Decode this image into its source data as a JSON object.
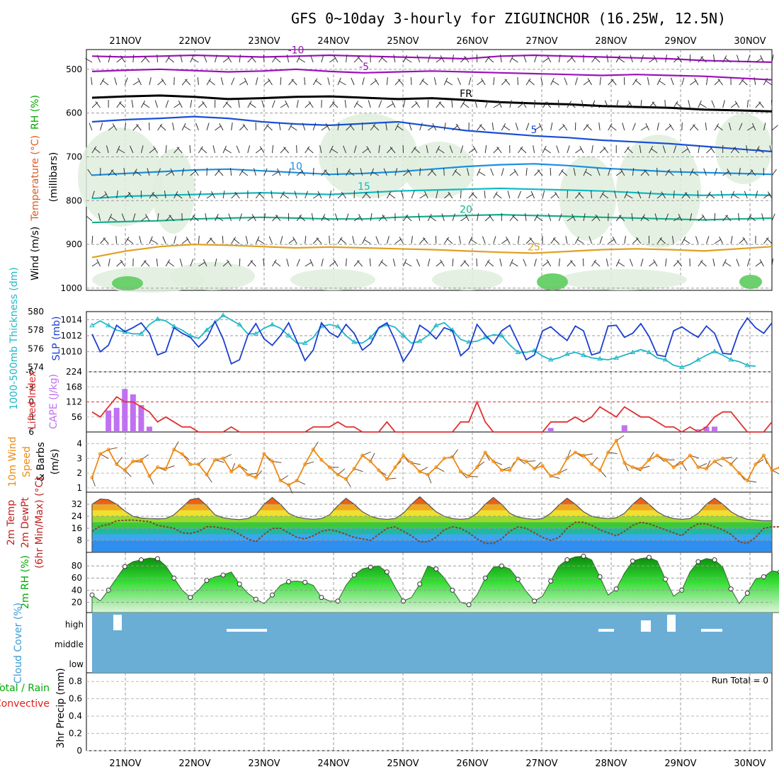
{
  "title": "GFS 0~10day 3-hourly for ZIGUINCHOR (16.25W, 12.5N)",
  "dates": [
    "21NOV",
    "22NOV",
    "23NOV",
    "24NOV",
    "25NOV",
    "26NOV",
    "27NOV",
    "28NOV",
    "29NOV",
    "30NOV"
  ],
  "colors": {
    "temp500": "#9b10b8",
    "freezing": "#000000",
    "temp5": "#1a4fd6",
    "temp10": "#1a8fe0",
    "temp15": "#11b8c0",
    "temp20": "#14b08a",
    "temp25": "#e0a020",
    "temp30": "#e06010",
    "slp": "#1a3fd0",
    "thickness": "#20b8c8",
    "lifted": "#e03030",
    "cape": "#c070f0",
    "wind10": "#f08a10",
    "rh2m": "#11c011",
    "cloud": "#6aaed6"
  },
  "chart_data": [
    {
      "panel": "upper-air",
      "type": "contour",
      "ylabel_parts": [
        "Wind (m/s)",
        "Temperature (°C)",
        "RH (%)"
      ],
      "ylabel2": "(millibars)",
      "y_ticks": [
        "500",
        "600",
        "700",
        "800",
        "900",
        "1000"
      ],
      "ylim": [
        455,
        1005
      ],
      "isotherms": [
        {
          "label": "-10",
          "pressure": [
            470,
            472,
            470,
            468,
            470,
            472,
            470,
            468,
            470,
            472,
            474,
            476,
            470,
            468,
            470,
            472,
            474,
            476,
            480,
            482,
            484
          ]
        },
        {
          "label": "-5",
          "pressure": [
            505,
            502,
            500,
            503,
            506,
            504,
            500,
            505,
            508,
            506,
            504,
            506,
            508,
            510,
            512,
            514,
            512,
            514,
            516,
            520,
            524
          ]
        },
        {
          "label": "FR",
          "pressure": [
            565,
            562,
            560,
            563,
            568,
            566,
            563,
            562,
            565,
            568,
            566,
            570,
            575,
            578,
            580,
            584,
            586,
            588,
            592,
            594,
            596
          ]
        },
        {
          "label": "5",
          "pressure": [
            620,
            615,
            612,
            608,
            612,
            620,
            625,
            628,
            624,
            620,
            630,
            640,
            646,
            652,
            656,
            662,
            666,
            670,
            676,
            682,
            688
          ]
        },
        {
          "label": "10",
          "pressure": [
            742,
            738,
            734,
            730,
            728,
            732,
            736,
            740,
            738,
            734,
            728,
            722,
            718,
            716,
            720,
            726,
            730,
            734,
            736,
            738,
            740
          ]
        },
        {
          "label": "15",
          "pressure": [
            795,
            790,
            788,
            786,
            784,
            782,
            784,
            786,
            782,
            778,
            776,
            774,
            772,
            774,
            776,
            778,
            782,
            786,
            788,
            786,
            788
          ]
        },
        {
          "label": "20",
          "pressure": [
            850,
            848,
            846,
            842,
            840,
            838,
            840,
            842,
            842,
            838,
            836,
            834,
            832,
            834,
            836,
            838,
            840,
            842,
            844,
            842,
            840
          ]
        },
        {
          "label": "25",
          "pressure": [
            930,
            915,
            905,
            900,
            902,
            905,
            908,
            906,
            908,
            910,
            912,
            915,
            918,
            920,
            916,
            912,
            910,
            912,
            915,
            910,
            905
          ]
        }
      ]
    },
    {
      "panel": "slp-thickness",
      "type": "line",
      "ylabel_left": "1000-500mb Thickness (dm)",
      "ylabel_right": "SLP (mb)",
      "left_ticks": [
        "580",
        "578",
        "576",
        "574"
      ],
      "right_ticks": [
        "1014",
        "1012",
        "1010"
      ],
      "series": [
        {
          "name": "SLP (mb)",
          "values": [
            1012.2,
            1010,
            1010.8,
            1013.3,
            1012.5,
            1013.0,
            1013.6,
            1012.3,
            1009.6,
            1010.0,
            1013.0,
            1012.3,
            1011.8,
            1010.6,
            1011.6,
            1013.8,
            1011.6,
            1008.5,
            1009.0,
            1012.0,
            1013.5,
            1011.6,
            1010.8,
            1012.0,
            1013.6,
            1011.3,
            1008.9,
            1010.2,
            1013.6,
            1012.4,
            1011.8,
            1013.4,
            1012.3,
            1010.2,
            1011.0,
            1013.0,
            1013.6,
            1011.4,
            1008.8,
            1010.3,
            1013.3,
            1012.6,
            1011.6,
            1013.0,
            1012.6,
            1009.5,
            1010.4,
            1013.4,
            1012.1,
            1011.0,
            1012.6,
            1013.3,
            1011.2,
            1009.0,
            1009.6,
            1012.6,
            1013.1,
            1012.2,
            1011.4,
            1013.2,
            1012.6,
            1009.6,
            1009.9,
            1013.2,
            1013.3,
            1011.8,
            1012.3,
            1013.5,
            1011.9,
            1009.6,
            1009.4,
            1012.6,
            1013.1,
            1012.4,
            1011.8,
            1013.2,
            1012.3,
            1009.8,
            1009.7,
            1012.6,
            1014.2,
            1013.0,
            1012.3,
            1013.6
          ]
        },
        {
          "name": "1000-500mb Thickness (dm)",
          "values": [
            578.5,
            579.0,
            578.5,
            578.0,
            577.8,
            577.6,
            577.6,
            578.6,
            579.2,
            579.0,
            578.4,
            578.0,
            577.4,
            577.1,
            578.0,
            578.8,
            579.6,
            579.1,
            578.6,
            577.6,
            577.6,
            578.2,
            578.6,
            578.2,
            577.4,
            576.6,
            576.6,
            577.2,
            578.4,
            578.6,
            578.4,
            577.4,
            576.7,
            576.6,
            577.2,
            578.2,
            578.6,
            578.3,
            577.4,
            576.6,
            576.8,
            577.4,
            578.5,
            578.8,
            578.0,
            577.0,
            576.7,
            576.8,
            577.2,
            577.5,
            577.4,
            576.4,
            575.6,
            575.6,
            575.8,
            575.2,
            574.8,
            575.0,
            575.4,
            575.6,
            575.3,
            575.0,
            574.9,
            574.8,
            575.0,
            575.3,
            575.6,
            575.9,
            575.6,
            575.0,
            574.8,
            574.2,
            574.0,
            574.3,
            574.8,
            575.3,
            575.7,
            575.3,
            574.8,
            574.6,
            574.2,
            574.1
          ]
        }
      ]
    },
    {
      "panel": "stability",
      "type": "bar+line",
      "ylabel_left": "Lifted Index",
      "ylabel_right": "CAPE (J/kg)",
      "left_ticks": [
        "-6",
        "-3",
        "0",
        "3",
        "6"
      ],
      "right_ticks": [
        "224",
        "168",
        "112",
        "56"
      ],
      "series": [
        {
          "name": "Lifted Index",
          "values": [
            2,
            3,
            1,
            -1,
            0,
            0,
            1,
            2,
            4,
            3,
            4,
            5,
            5,
            6,
            6,
            6,
            6,
            5,
            6,
            6,
            6,
            6,
            6,
            6,
            6,
            6,
            6,
            5,
            5,
            5,
            4,
            5,
            5,
            6,
            6,
            6,
            4,
            6,
            6,
            6,
            6,
            6,
            6,
            6,
            6,
            4,
            4,
            0,
            4,
            6,
            6,
            6,
            6,
            6,
            6,
            6,
            4,
            4,
            4,
            3,
            4,
            3,
            1,
            2,
            3,
            1,
            2,
            3,
            3,
            4,
            5,
            5,
            6,
            5,
            6,
            5,
            3,
            2,
            2,
            4,
            6,
            6,
            6,
            4
          ]
        },
        {
          "name": "CAPE (J/kg)",
          "values": [
            0,
            0,
            80,
            90,
            160,
            140,
            100,
            20,
            0,
            0,
            0,
            0,
            0,
            0,
            0,
            0,
            0,
            0,
            0,
            0,
            0,
            0,
            0,
            0,
            0,
            0,
            0,
            0,
            0,
            0,
            0,
            0,
            0,
            0,
            0,
            0,
            0,
            0,
            0,
            0,
            0,
            0,
            0,
            0,
            0,
            0,
            0,
            0,
            0,
            0,
            0,
            0,
            0,
            0,
            0,
            0,
            15,
            0,
            0,
            0,
            0,
            0,
            0,
            0,
            0,
            25,
            0,
            0,
            0,
            0,
            0,
            0,
            0,
            0,
            10,
            20,
            20,
            0,
            0,
            0,
            0,
            0,
            0,
            0
          ]
        }
      ]
    },
    {
      "panel": "wind10m",
      "type": "line",
      "ylabel": "10m Wind Speed & Barbs (m/s)",
      "ylabel_parts": [
        "10m Wind",
        "Speed",
        "& Barbs",
        "(m/s)"
      ],
      "y_ticks": [
        "4",
        "3",
        "2",
        "1"
      ],
      "series": [
        {
          "name": "10m Wind Speed",
          "values": [
            1.7,
            3.3,
            3.6,
            2.6,
            2.2,
            2.8,
            2.9,
            1.8,
            2.4,
            2.3,
            3.6,
            3.3,
            2.6,
            2.6,
            1.9,
            2.9,
            3.0,
            2.1,
            2.5,
            1.9,
            1.7,
            3.3,
            2.8,
            1.5,
            1.2,
            1.5,
            2.6,
            3.6,
            2.9,
            2.4,
            1.9,
            1.6,
            2.3,
            3.2,
            2.8,
            2.2,
            1.6,
            2.4,
            3.2,
            2.7,
            2.1,
            1.9,
            2.4,
            3.0,
            3.1,
            2.1,
            1.8,
            2.4,
            3.4,
            2.8,
            2.2,
            2.2,
            3.0,
            2.8,
            2.3,
            2.5,
            1.8,
            2.0,
            3.0,
            3.4,
            3.2,
            2.6,
            2.2,
            3.4,
            4.2,
            2.7,
            2.4,
            2.3,
            2.9,
            3.2,
            2.9,
            2.4,
            2.7,
            3.2,
            2.4,
            2.3,
            2.8,
            3.0,
            2.6,
            2.0,
            1.5,
            2.6,
            3.2,
            2.2,
            2.4
          ]
        }
      ]
    },
    {
      "panel": "temp2m",
      "type": "area+line",
      "ylabel_parts": [
        "2m Temp",
        "2m DewPt",
        "(6hr Min/Max) (°C)"
      ],
      "y_ticks": [
        "32",
        "24",
        "16",
        "8"
      ],
      "series": [
        {
          "name": "2m Temp",
          "values": [
            32,
            35.5,
            35,
            32,
            27.5,
            24,
            22.8,
            22.5,
            22.3,
            22.5,
            25,
            30,
            35,
            36,
            31,
            25,
            23,
            22.2,
            21.8,
            22.5,
            25,
            32,
            36.5,
            32,
            26,
            23.5,
            22.5,
            22,
            22.5,
            25,
            31,
            36,
            32,
            27,
            24,
            22.5,
            22,
            22.5,
            26,
            32,
            37,
            32,
            27,
            24,
            22.5,
            22,
            22.5,
            26,
            32,
            36.5,
            32,
            26,
            23.5,
            22.5,
            22,
            22.5,
            26,
            31.5,
            36,
            32,
            27,
            24,
            23,
            22.5,
            23,
            26,
            32,
            36.5,
            32,
            27,
            24,
            22.5,
            22,
            22.5,
            26,
            32,
            36,
            32,
            27,
            24,
            22,
            21.5,
            21,
            21
          ]
        },
        {
          "name": "2m DewPt",
          "values": [
            14,
            17.5,
            18.5,
            21,
            21.3,
            21.4,
            21,
            20.5,
            18,
            17,
            16,
            13,
            12.5,
            14,
            17,
            17,
            16,
            15,
            12,
            9,
            7,
            12,
            16,
            16,
            13,
            10,
            9,
            11,
            14,
            15,
            14,
            12,
            10,
            9,
            8,
            12,
            16,
            17,
            14,
            11,
            7,
            7,
            10,
            15,
            17,
            16,
            13,
            9,
            6,
            6,
            9,
            14,
            17,
            16,
            13,
            10,
            8,
            10,
            16,
            20,
            20,
            18,
            15,
            13,
            11,
            14,
            18,
            20,
            19,
            17,
            15,
            13,
            11,
            16,
            19,
            19,
            17,
            15,
            12,
            7,
            6,
            10,
            16,
            17,
            17
          ]
        }
      ]
    },
    {
      "panel": "rh2m",
      "type": "area",
      "ylabel": "2m RH (%)",
      "y_ticks": [
        "80",
        "60",
        "40",
        "20"
      ],
      "series": [
        {
          "name": "2m RH (%)",
          "values": [
            32,
            22,
            40,
            60,
            79,
            87,
            90,
            93,
            92,
            80,
            60,
            40,
            28,
            40,
            56,
            62,
            65,
            70,
            50,
            35,
            25,
            18,
            32,
            48,
            54,
            55,
            53,
            48,
            28,
            22,
            22,
            48,
            65,
            75,
            78,
            80,
            70,
            45,
            22,
            28,
            50,
            80,
            75,
            60,
            40,
            20,
            16,
            32,
            60,
            78,
            80,
            75,
            58,
            38,
            22,
            30,
            55,
            80,
            90,
            95,
            96,
            90,
            62,
            32,
            42,
            68,
            88,
            92,
            94,
            88,
            58,
            30,
            40,
            70,
            87,
            92,
            90,
            78,
            42,
            18,
            35,
            58,
            62,
            72,
            70
          ]
        }
      ]
    },
    {
      "panel": "cloud",
      "type": "bar",
      "ylabel": "Cloud Cover (%)",
      "y_ticks": [
        "high",
        "middle",
        "low"
      ],
      "note": "cloud cover near 100% at all levels most of the period"
    },
    {
      "panel": "precip",
      "type": "bar",
      "ylabel_parts": [
        "Total / Rain",
        "Convective",
        "3hr Precip (mm)"
      ],
      "y_ticks": [
        "0.8",
        "0.6",
        "0.4",
        "0.2",
        "0"
      ],
      "annotation": "Run Total = 0",
      "values": []
    }
  ]
}
